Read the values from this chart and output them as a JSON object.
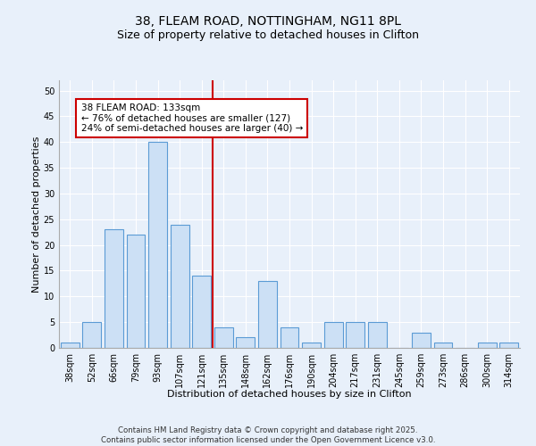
{
  "title1": "38, FLEAM ROAD, NOTTINGHAM, NG11 8PL",
  "title2": "Size of property relative to detached houses in Clifton",
  "xlabel": "Distribution of detached houses by size in Clifton",
  "ylabel": "Number of detached properties",
  "categories": [
    "38sqm",
    "52sqm",
    "66sqm",
    "79sqm",
    "93sqm",
    "107sqm",
    "121sqm",
    "135sqm",
    "148sqm",
    "162sqm",
    "176sqm",
    "190sqm",
    "204sqm",
    "217sqm",
    "231sqm",
    "245sqm",
    "259sqm",
    "273sqm",
    "286sqm",
    "300sqm",
    "314sqm"
  ],
  "values": [
    1,
    5,
    23,
    22,
    40,
    24,
    14,
    4,
    2,
    13,
    4,
    1,
    5,
    5,
    5,
    0,
    3,
    1,
    0,
    1,
    1
  ],
  "bar_color": "#cce0f5",
  "bar_edge_color": "#5b9bd5",
  "highlight_line_color": "#cc0000",
  "annotation_line1": "38 FLEAM ROAD: 133sqm",
  "annotation_line2": "← 76% of detached houses are smaller (127)",
  "annotation_line3": "24% of semi-detached houses are larger (40) →",
  "annotation_box_color": "#cc0000",
  "ylim": [
    0,
    52
  ],
  "yticks": [
    0,
    5,
    10,
    15,
    20,
    25,
    30,
    35,
    40,
    45,
    50
  ],
  "background_color": "#e8f0fa",
  "plot_bg_color": "#e8f0fa",
  "footer1": "Contains HM Land Registry data © Crown copyright and database right 2025.",
  "footer2": "Contains public sector information licensed under the Open Government Licence v3.0.",
  "title_fontsize": 10,
  "subtitle_fontsize": 9,
  "axis_label_fontsize": 8,
  "tick_fontsize": 7,
  "annotation_fontsize": 7.5,
  "bar_width": 0.85,
  "highlight_bar_index": 7
}
